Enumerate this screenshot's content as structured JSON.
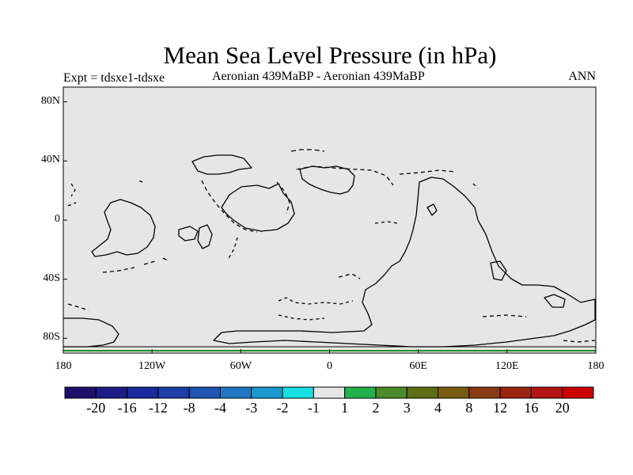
{
  "title": "Mean Sea Level Pressure (in hPa)",
  "subtitle_left": "Expt = tdsxe1-tdsxe",
  "subtitle_center": "Aeronian 439MaBP - Aeronian 439MaBP",
  "subtitle_right": "ANN",
  "map_background": "#e6e6e6",
  "lon_ticks": [
    {
      "label": "180",
      "value": -180
    },
    {
      "label": "120W",
      "value": -120
    },
    {
      "label": "60W",
      "value": -60
    },
    {
      "label": "0",
      "value": 0
    },
    {
      "label": "60E",
      "value": 60
    },
    {
      "label": "120E",
      "value": 120
    },
    {
      "label": "180",
      "value": 180
    }
  ],
  "lat_ticks": [
    {
      "label": "80N",
      "value": 80
    },
    {
      "label": "40N",
      "value": 40
    },
    {
      "label": "0",
      "value": 0
    },
    {
      "label": "40S",
      "value": -40
    },
    {
      "label": "80S",
      "value": -80
    }
  ],
  "colorbar": {
    "colors": [
      "#1f0f6b",
      "#1d1b85",
      "#1a2a9c",
      "#1e3fa8",
      "#1f55b4",
      "#2277c2",
      "#1a98cf",
      "#17e0e0",
      "#e6e6e6",
      "#22b14c",
      "#4a8a2a",
      "#5e6e14",
      "#7a5c10",
      "#8a3a12",
      "#9a2410",
      "#b41414",
      "#cc0000"
    ],
    "labels": [
      "-20",
      "-16",
      "-12",
      "-8",
      "-4",
      "-3",
      "-2",
      "-1",
      "1",
      "2",
      "3",
      "4",
      "8",
      "12",
      "16",
      "20"
    ]
  }
}
